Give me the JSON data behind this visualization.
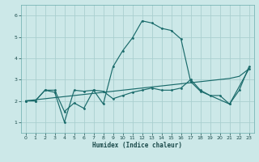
{
  "xlabel": "Humidex (Indice chaleur)",
  "bg_color": "#cce8e8",
  "grid_color": "#aacfcf",
  "line_color": "#1a6b6b",
  "x_values": [
    0,
    1,
    2,
    3,
    4,
    5,
    6,
    7,
    8,
    9,
    10,
    11,
    12,
    13,
    14,
    15,
    16,
    17,
    18,
    19,
    20,
    21,
    22,
    23
  ],
  "line1": [
    2.0,
    2.0,
    2.5,
    2.5,
    1.5,
    1.9,
    1.65,
    2.5,
    1.85,
    3.6,
    4.35,
    4.95,
    5.75,
    5.65,
    5.4,
    5.3,
    4.9,
    2.9,
    2.45,
    null,
    null,
    1.85,
    null,
    3.5
  ],
  "line2": [
    2.0,
    2.0,
    2.5,
    2.4,
    1.0,
    2.5,
    2.45,
    2.5,
    2.45,
    2.1,
    2.25,
    2.4,
    2.5,
    2.6,
    2.5,
    2.5,
    2.6,
    3.0,
    2.5,
    2.25,
    2.25,
    1.85,
    2.5,
    3.6
  ],
  "line3": [
    2.0,
    2.05,
    2.1,
    2.15,
    2.2,
    2.25,
    2.3,
    2.35,
    2.4,
    2.45,
    2.5,
    2.55,
    2.6,
    2.65,
    2.7,
    2.75,
    2.8,
    2.85,
    2.9,
    2.95,
    3.0,
    3.05,
    3.15,
    3.5
  ],
  "xlim": [
    -0.5,
    23.5
  ],
  "ylim": [
    0.5,
    6.5
  ],
  "yticks": [
    1,
    2,
    3,
    4,
    5,
    6
  ],
  "xticks": [
    0,
    1,
    2,
    3,
    4,
    5,
    6,
    7,
    8,
    9,
    10,
    11,
    12,
    13,
    14,
    15,
    16,
    17,
    18,
    19,
    20,
    21,
    22,
    23
  ]
}
